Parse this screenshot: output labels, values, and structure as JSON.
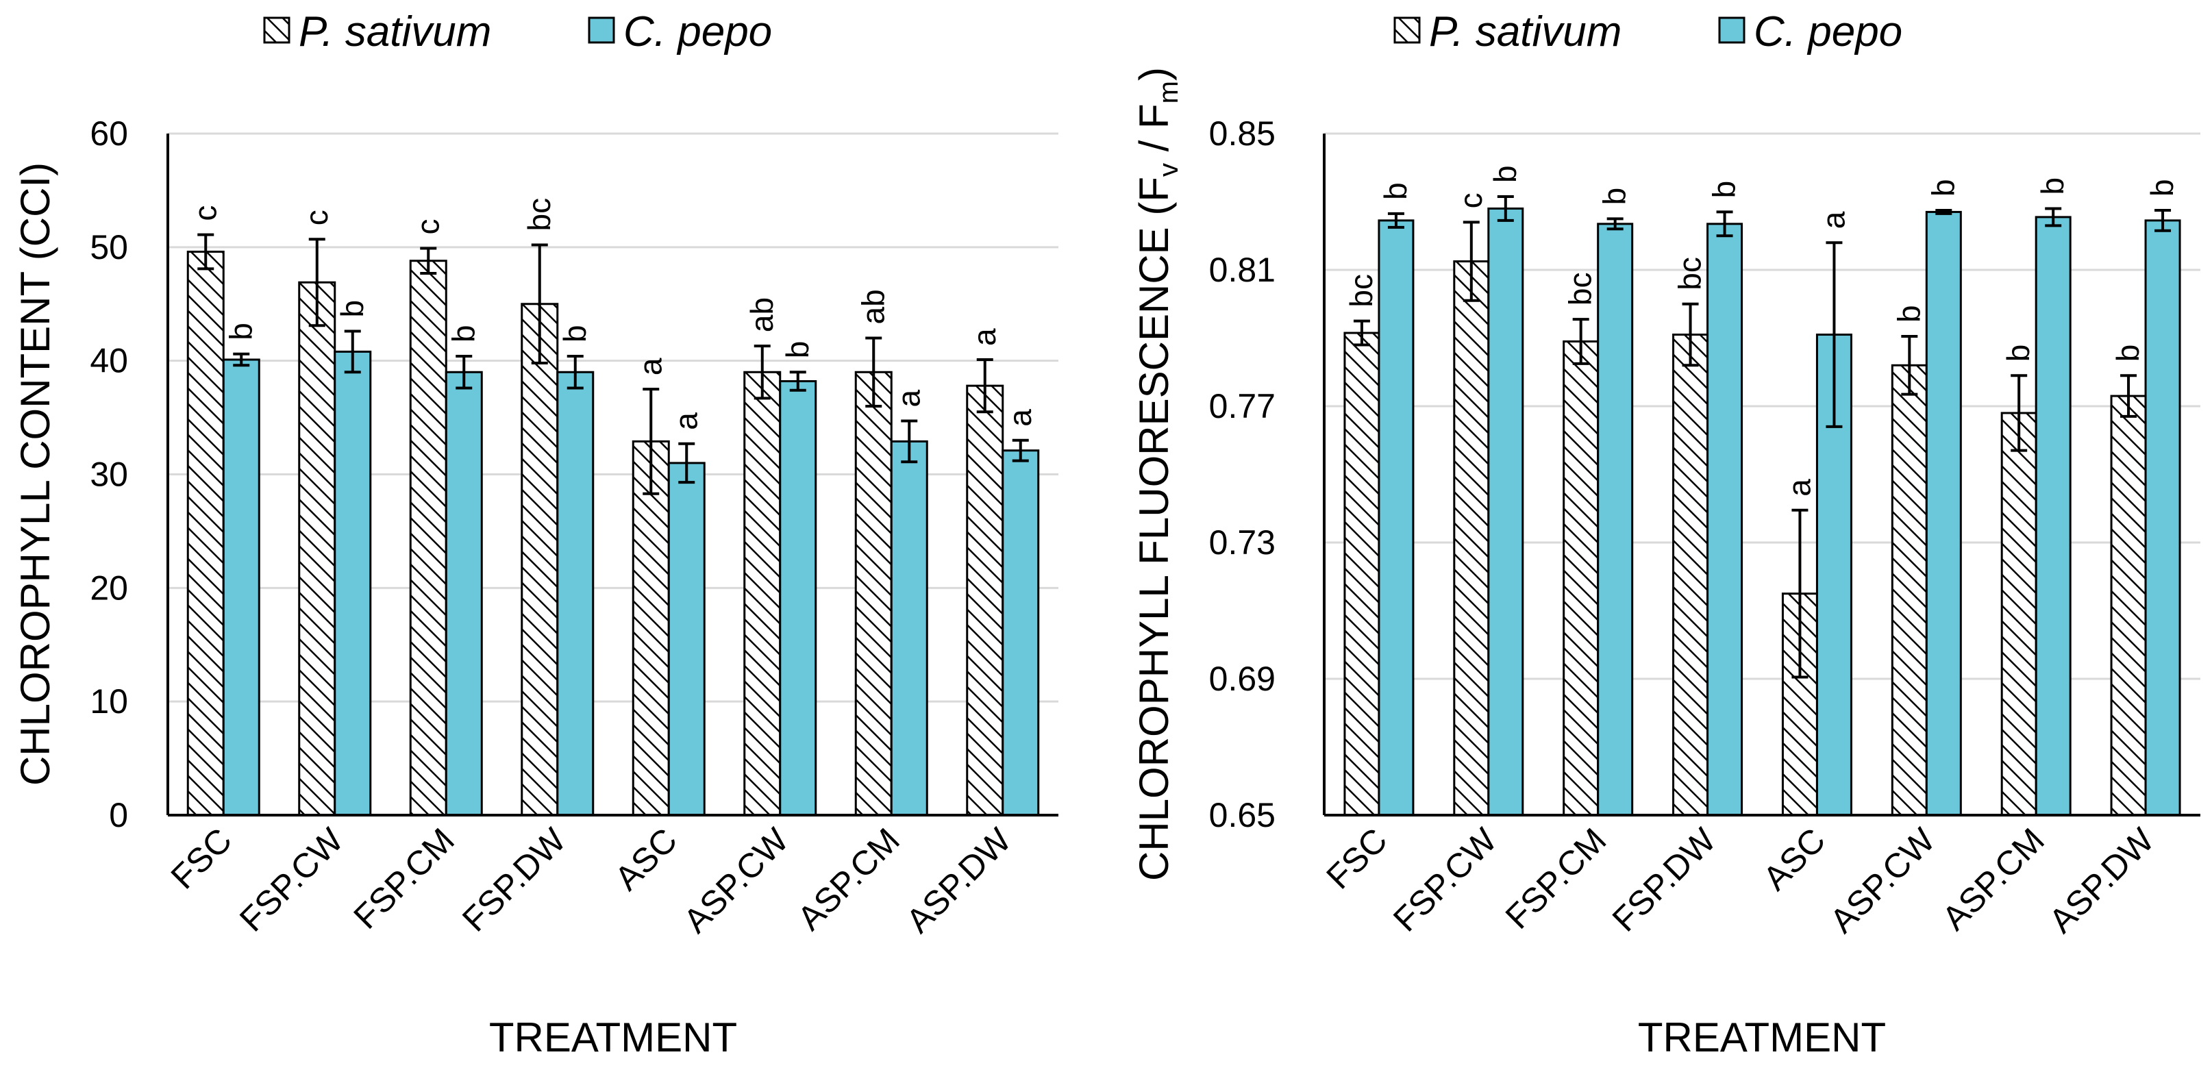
{
  "colors": {
    "series_a_fill": "#ffffff",
    "series_b_fill": "#6bc8da",
    "grid": "#d9d9d9",
    "axis": "#000000"
  },
  "chart_data": [
    {
      "type": "bar",
      "categories": [
        "FSC",
        "FSP.CW",
        "FSP.CM",
        "FSP.DW",
        "ASC",
        "ASP.CW",
        "ASP.CM",
        "ASP.DW"
      ],
      "legend": [
        "P. sativum",
        "C. pepo"
      ],
      "series": [
        {
          "name": "P. sativum",
          "pattern": "hatched",
          "values": [
            49.6,
            46.9,
            48.8,
            45.0,
            32.9,
            39.0,
            39.0,
            37.8
          ],
          "errors": [
            1.5,
            3.8,
            1.1,
            5.2,
            4.6,
            2.3,
            3.0,
            2.3
          ],
          "labels": [
            "c",
            "c",
            "c",
            "bc",
            "a",
            "ab",
            "ab",
            "a"
          ]
        },
        {
          "name": "C. pepo",
          "pattern": "solid",
          "values": [
            40.1,
            40.8,
            39.0,
            39.0,
            31.0,
            38.2,
            32.9,
            32.1
          ],
          "errors": [
            0.5,
            1.8,
            1.4,
            1.4,
            1.7,
            0.8,
            1.8,
            0.9
          ],
          "labels": [
            "b",
            "b",
            "b",
            "b",
            "a",
            "b",
            "a",
            "a"
          ]
        }
      ],
      "ylabel": "CHLOROPHYLL CONTENT (CCI)",
      "xlabel": "TREATMENT",
      "ylim": [
        0,
        60
      ],
      "yticks": [
        0,
        10,
        20,
        30,
        40,
        50,
        60
      ],
      "ytick_labels": [
        "0",
        "10",
        "20",
        "30",
        "40",
        "50",
        "60"
      ],
      "grid": true
    },
    {
      "type": "bar",
      "categories": [
        "FSC",
        "FSP.CW",
        "FSP.CM",
        "FSP.DW",
        "ASC",
        "ASP.CW",
        "ASP.CM",
        "ASP.DW"
      ],
      "legend": [
        "P. sativum",
        "C. pepo"
      ],
      "series": [
        {
          "name": "P. sativum",
          "pattern": "hatched",
          "values": [
            0.7915,
            0.8125,
            0.789,
            0.791,
            0.715,
            0.782,
            0.768,
            0.773
          ],
          "errors": [
            0.0035,
            0.0115,
            0.0065,
            0.009,
            0.0245,
            0.0085,
            0.011,
            0.006
          ],
          "labels": [
            "bc",
            "c",
            "bc",
            "bc",
            "a",
            "b",
            "b",
            "b"
          ]
        },
        {
          "name": "C. pepo",
          "pattern": "solid",
          "values": [
            0.8245,
            0.828,
            0.8235,
            0.8235,
            0.791,
            0.827,
            0.8255,
            0.8245
          ],
          "errors": [
            0.002,
            0.0035,
            0.0015,
            0.0035,
            0.027,
            0.0005,
            0.0025,
            0.003
          ],
          "labels": [
            "b",
            "b",
            "b",
            "b",
            "a",
            "b",
            "b",
            "b"
          ]
        }
      ],
      "ylabel": "CHLOROPHYLL FLUORESCENCE (Fv / Fm)",
      "ylabel_parts": [
        "CHLOROPHYLL FLUORESCENCE (F",
        "v",
        " / F",
        "m",
        ")"
      ],
      "xlabel": "TREATMENT",
      "ylim": [
        0.65,
        0.85
      ],
      "yticks": [
        0.65,
        0.69,
        0.73,
        0.77,
        0.81,
        0.85
      ],
      "ytick_labels": [
        "0.65",
        "0.69",
        "0.73",
        "0.77",
        "0.81",
        "0.85"
      ],
      "grid": true
    }
  ]
}
